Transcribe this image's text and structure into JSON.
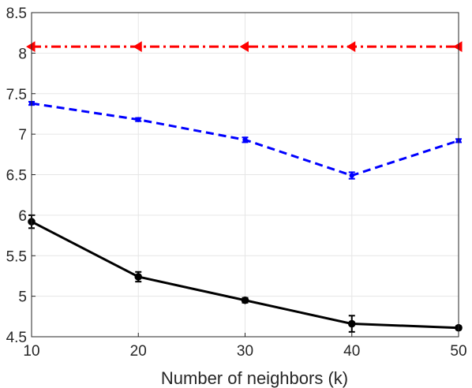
{
  "chart_data": {
    "type": "line",
    "xlabel": "Number of neighbors (k)",
    "ylabel": "",
    "title": "",
    "x": [
      10,
      20,
      30,
      40,
      50
    ],
    "xlim": [
      10,
      50
    ],
    "ylim": [
      4.5,
      8.5
    ],
    "xticks": [
      "10",
      "20",
      "30",
      "40",
      "50"
    ],
    "yticks": [
      "4.5",
      "5",
      "5.5",
      "6",
      "6.5",
      "7",
      "7.5",
      "8",
      "8.5"
    ],
    "grid": true,
    "legend": "none",
    "series": [
      {
        "color": "#ff0000",
        "line_style": "dash-dot",
        "marker": "left-triangle",
        "values": [
          8.08,
          8.08,
          8.08,
          8.08,
          8.08
        ],
        "errors": [
          0,
          0,
          0,
          0,
          0
        ]
      },
      {
        "color": "#0000ff",
        "line_style": "dashed",
        "marker": "dot",
        "values": [
          7.38,
          7.18,
          6.93,
          6.49,
          6.92
        ],
        "errors": [
          0.02,
          0.02,
          0.03,
          0.04,
          0.02
        ]
      },
      {
        "color": "#000000",
        "line_style": "solid",
        "marker": "circle",
        "values": [
          5.92,
          5.24,
          4.95,
          4.66,
          4.61
        ],
        "errors": [
          0.08,
          0.06,
          0.03,
          0.1,
          0.02
        ]
      }
    ]
  }
}
